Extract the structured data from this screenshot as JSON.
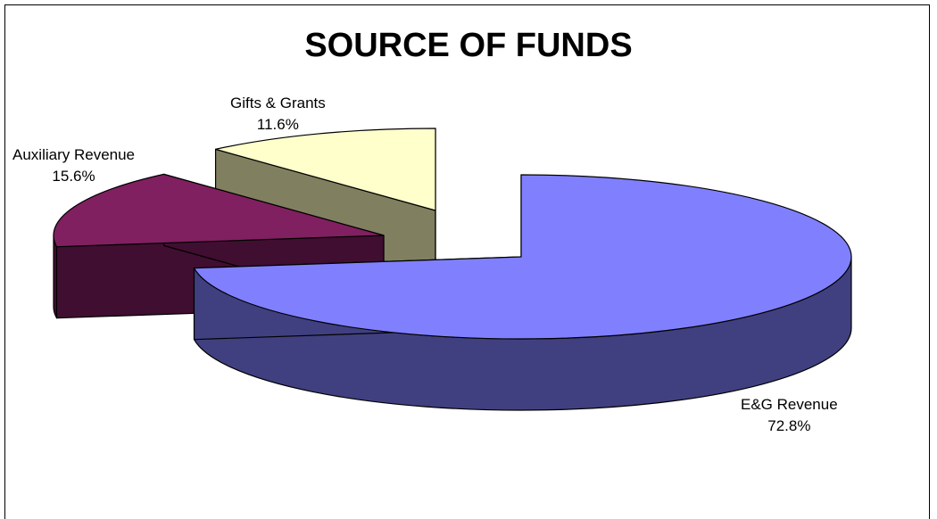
{
  "chart_data": {
    "type": "pie",
    "title": "SOURCE OF FUNDS",
    "three_d": true,
    "exploded": true,
    "slices": [
      {
        "name": "E&G Revenue",
        "value": 72.8,
        "label_pct": "72.8%",
        "color": "#8080ff",
        "side_color": "#404080"
      },
      {
        "name": "Auxiliary Revenue",
        "value": 15.6,
        "label_pct": "15.6%",
        "color": "#802060",
        "side_color": "#400e30"
      },
      {
        "name": "Gifts & Grants",
        "value": 11.6,
        "label_pct": "11.6%",
        "color": "#ffffcc",
        "side_color": "#808060"
      }
    ]
  }
}
